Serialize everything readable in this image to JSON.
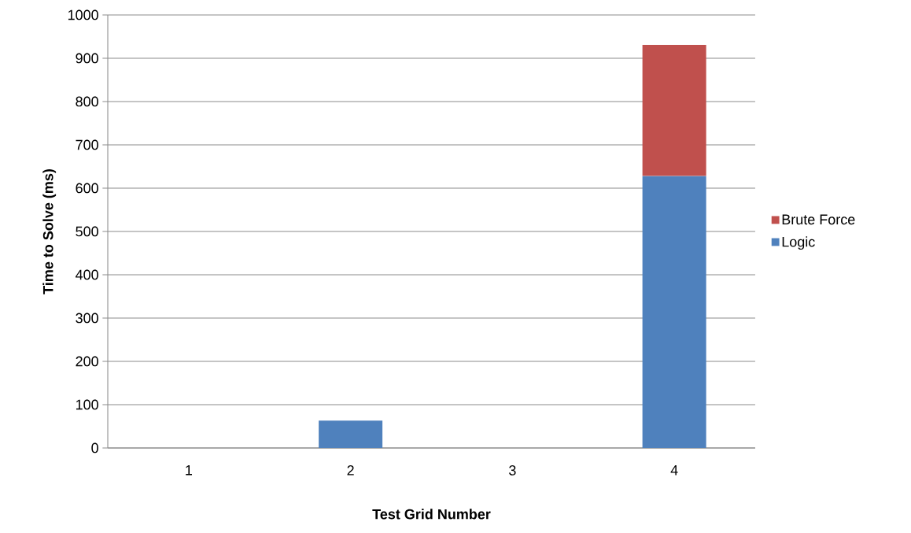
{
  "chart_data": {
    "type": "bar",
    "stacked": true,
    "xlabel": "Test Grid Number",
    "ylabel": "Time to Solve (ms)",
    "categories": [
      "1",
      "2",
      "3",
      "4"
    ],
    "series": [
      {
        "name": "Logic",
        "color": "#4f81bd",
        "values": [
          0,
          63,
          0,
          628
        ]
      },
      {
        "name": "Brute Force",
        "color": "#c0504d",
        "values": [
          0,
          0,
          0,
          303
        ]
      }
    ],
    "ylim": [
      0,
      1000
    ],
    "yticks": [
      0,
      100,
      200,
      300,
      400,
      500,
      600,
      700,
      800,
      900,
      1000
    ],
    "grid": "y",
    "legend": "right"
  }
}
